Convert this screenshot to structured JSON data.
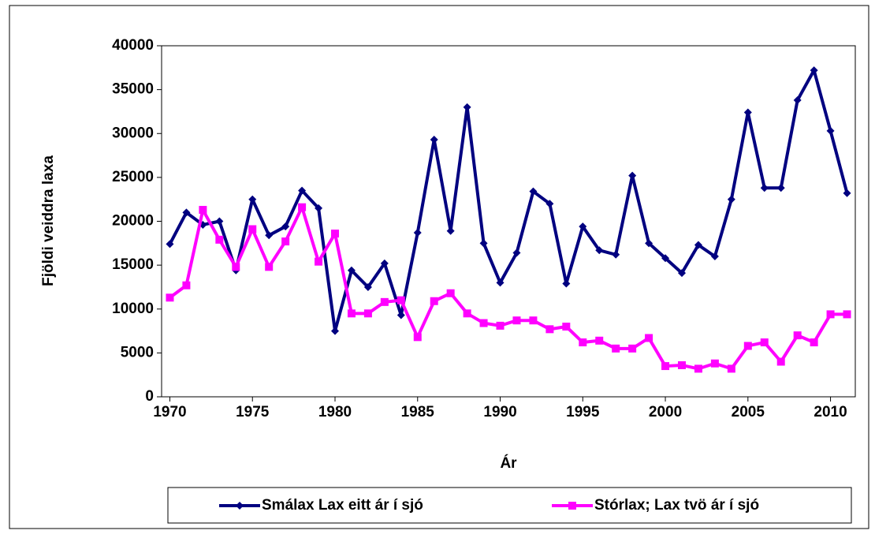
{
  "chart_data": {
    "type": "line",
    "x_label": "Ár",
    "y_label": "Fjöldi veiddra laxa",
    "x": [
      1970,
      1971,
      1972,
      1973,
      1974,
      1975,
      1976,
      1977,
      1978,
      1979,
      1980,
      1981,
      1982,
      1983,
      1984,
      1985,
      1986,
      1987,
      1988,
      1989,
      1990,
      1991,
      1992,
      1993,
      1994,
      1995,
      1996,
      1997,
      1998,
      1999,
      2000,
      2001,
      2002,
      2003,
      2004,
      2005,
      2006,
      2007,
      2008,
      2009,
      2010,
      2011
    ],
    "series": [
      {
        "name": "Smálax Lax eitt ár í sjó",
        "color": "#000080",
        "marker": "diamond",
        "values": [
          17400,
          21000,
          19600,
          20000,
          14400,
          22500,
          18400,
          19400,
          23500,
          21500,
          7500,
          14400,
          12500,
          15200,
          9300,
          18700,
          29300,
          18900,
          33000,
          17500,
          13000,
          16400,
          23400,
          22000,
          12900,
          19400,
          16700,
          16200,
          25200,
          17500,
          15800,
          14100,
          17300,
          16000,
          22500,
          32400,
          23800,
          23800,
          33800,
          37200,
          30300,
          23200
        ]
      },
      {
        "name": "Stórlax; Lax tvö ár í sjó",
        "color": "#ff00ff",
        "marker": "square",
        "values": [
          11300,
          12700,
          21300,
          17900,
          14800,
          19100,
          14800,
          17700,
          21600,
          15400,
          18600,
          9500,
          9500,
          10800,
          11000,
          6800,
          10900,
          11800,
          9500,
          8400,
          8100,
          8700,
          8700,
          7700,
          8000,
          6200,
          6400,
          5500,
          5500,
          6700,
          3500,
          3600,
          3200,
          3800,
          3200,
          5800,
          6200,
          4000,
          7000,
          6200,
          9400,
          9400
        ]
      }
    ],
    "xlim": [
      1969.5,
      2011.5
    ],
    "xticks": [
      1970,
      1975,
      1980,
      1985,
      1990,
      1995,
      2000,
      2005,
      2010
    ],
    "ylim": [
      0,
      40000
    ],
    "yticks": [
      0,
      5000,
      10000,
      15000,
      20000,
      25000,
      30000,
      35000,
      40000
    ],
    "grid": false,
    "legend": "bottom"
  }
}
